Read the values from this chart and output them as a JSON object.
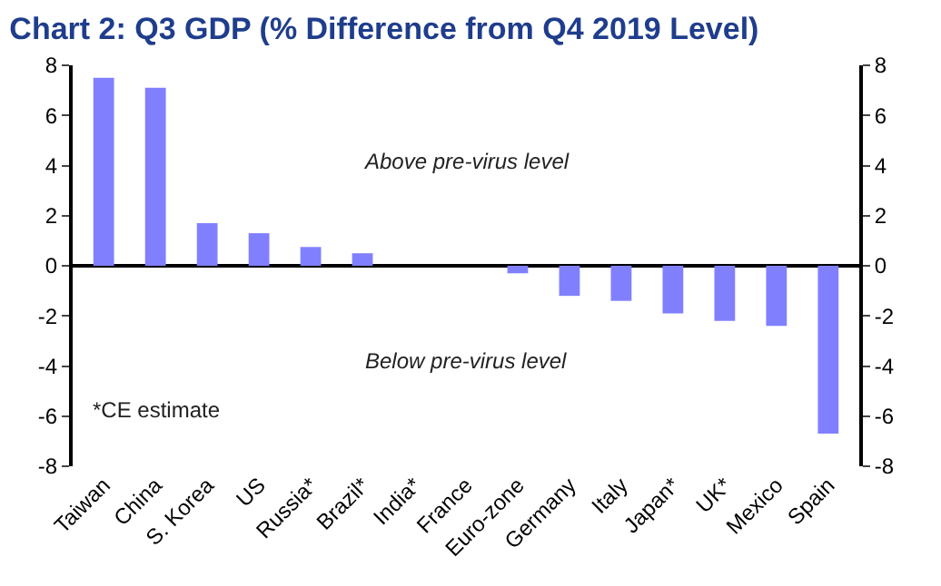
{
  "chart_data": {
    "type": "bar",
    "title": "Chart 2: Q3 GDP (% Difference from Q4 2019 Level)",
    "categories": [
      "Taiwan",
      "China",
      "S. Korea",
      "US",
      "Russia*",
      "Brazil*",
      "India*",
      "France",
      "Euro-zone",
      "Germany",
      "Italy",
      "Japan*",
      "UK*",
      "Mexico",
      "Spain"
    ],
    "values": [
      7.5,
      7.1,
      1.7,
      1.3,
      0.75,
      0.5,
      0,
      0,
      -0.3,
      -1.2,
      -1.4,
      -1.9,
      -2.2,
      -2.4,
      -6.7
    ],
    "color": "#8080ff",
    "ylim": [
      -8,
      8
    ],
    "yticks": [
      -8,
      -6,
      -4,
      -2,
      0,
      2,
      4,
      6,
      8
    ],
    "y2lim": [
      -8,
      8
    ],
    "y2ticks": [
      -8,
      -6,
      -4,
      -2,
      0,
      2,
      4,
      6,
      8
    ],
    "annotations": [
      "Above pre-virus level",
      "Below pre-virus level",
      "*CE estimate"
    ],
    "line_style": "solid"
  }
}
